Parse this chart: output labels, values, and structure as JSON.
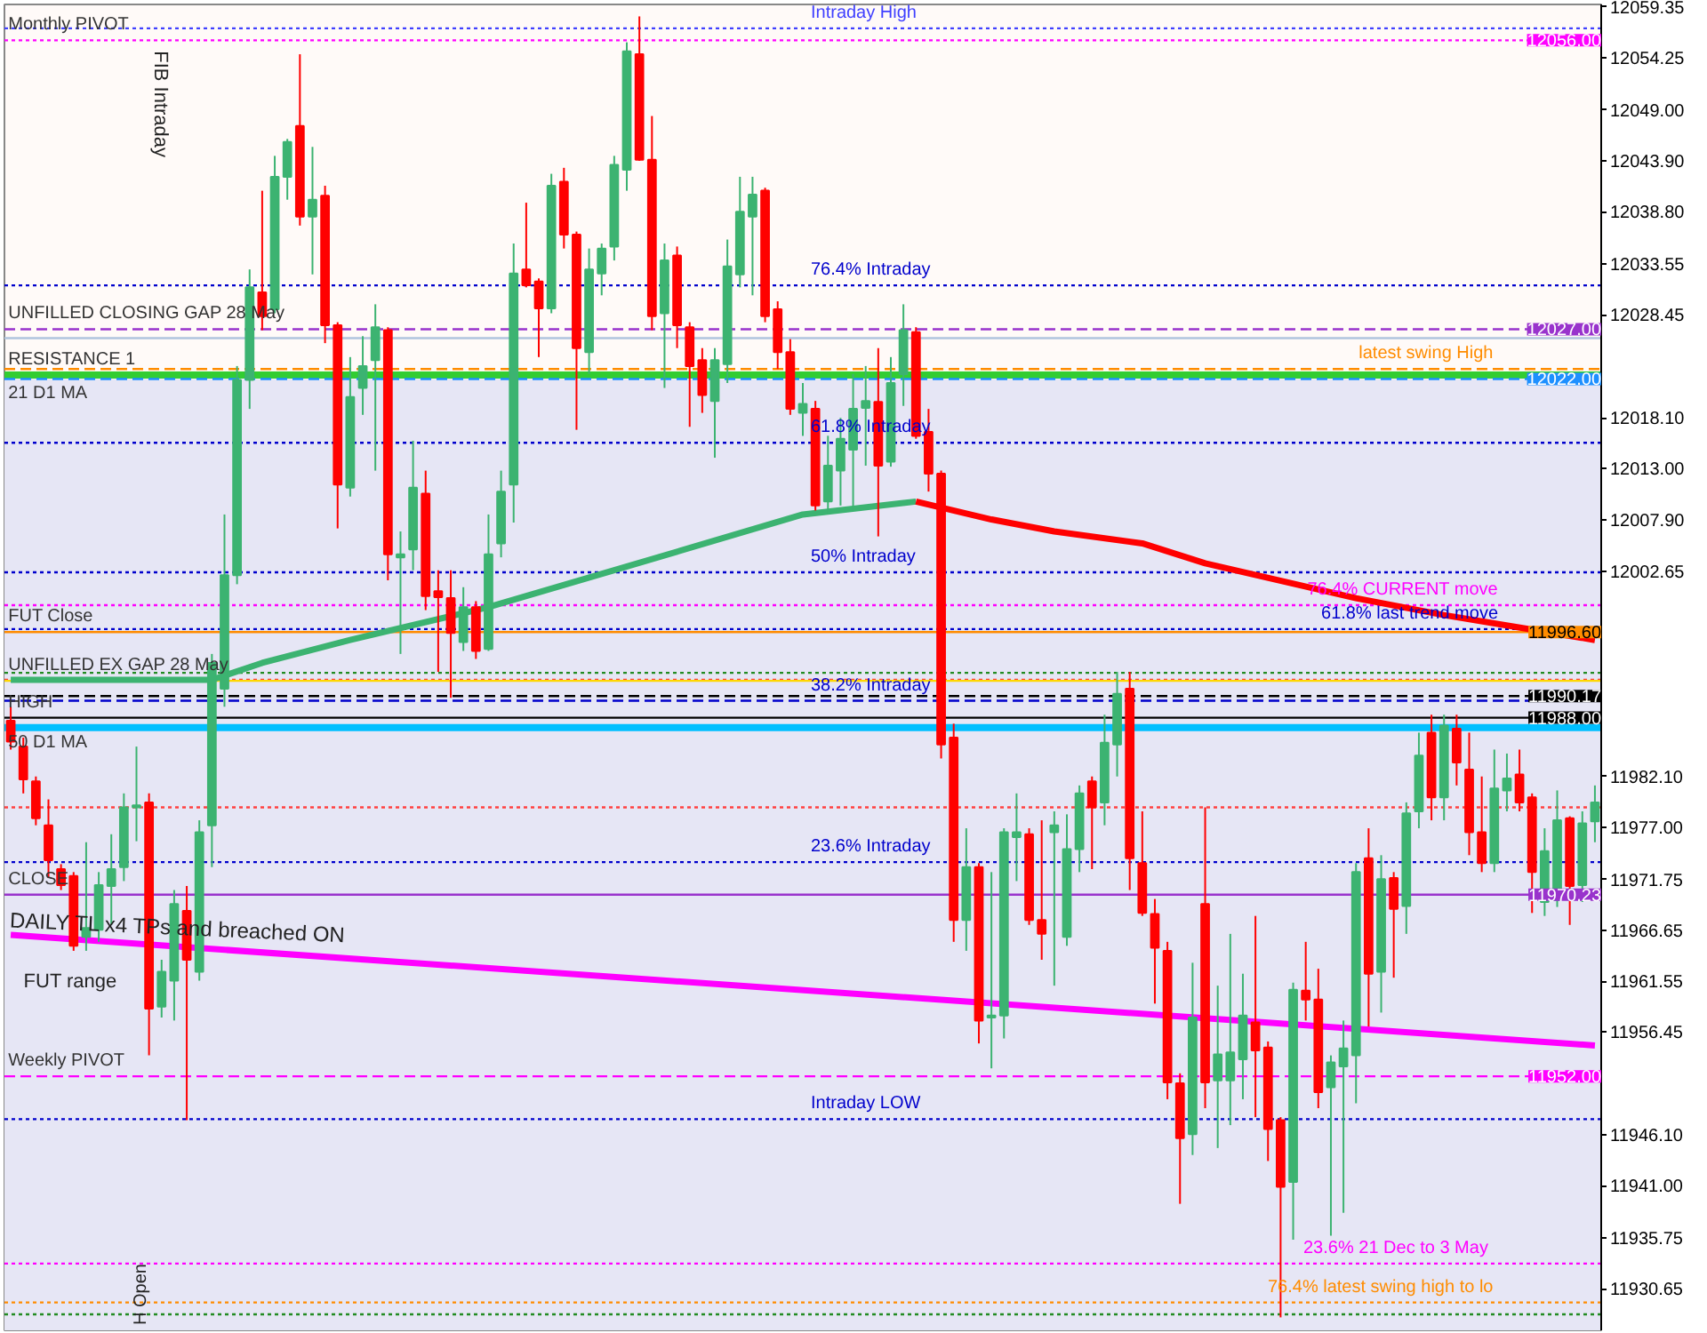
{
  "chart_data": {
    "type": "candlestick",
    "categories": [
      null,
      null,
      null,
      null,
      null,
      null,
      null,
      null,
      null,
      null,
      null,
      null,
      null,
      null,
      null,
      null,
      null,
      null,
      null,
      null,
      null,
      null,
      null,
      null,
      null,
      null,
      null,
      null,
      null,
      null,
      null,
      null,
      null,
      null,
      null,
      null,
      null,
      null,
      null,
      null,
      null,
      null,
      null,
      null,
      null,
      null,
      null,
      null,
      null,
      null,
      null,
      null,
      null,
      null,
      null,
      null,
      null,
      null,
      null,
      null,
      null,
      null,
      null,
      null,
      null,
      null,
      null,
      null,
      null,
      null,
      null,
      null,
      null,
      null,
      null,
      null,
      null,
      null,
      null,
      null,
      null,
      null,
      null,
      null,
      null,
      null,
      null,
      null,
      null,
      null,
      null,
      null,
      null,
      null,
      null,
      null,
      null,
      null,
      null,
      null,
      null,
      null,
      null,
      null,
      null,
      null,
      null,
      null,
      null,
      null,
      null,
      null,
      null,
      null,
      null,
      null,
      null,
      null,
      null,
      null,
      null,
      null,
      null,
      null,
      null,
      null,
      null
    ],
    "ohlc": [
      [
        11987.7,
        11989.1,
        11984.8,
        11985.6
      ],
      [
        11985.1,
        11986.0,
        11980.4,
        11981.8
      ],
      [
        11981.6,
        11982.1,
        11977.2,
        11977.9
      ],
      [
        11977.2,
        11979.8,
        11971.9,
        11973.7
      ],
      [
        11972.8,
        11973.3,
        11970.7,
        11971.2
      ],
      [
        11972.1,
        11972.5,
        11964.6,
        11965.1
      ],
      [
        11966.0,
        11975.5,
        11964.6,
        11966.9
      ],
      [
        11966.7,
        11972.5,
        11965.5,
        11971.2
      ],
      [
        11971.1,
        11976.3,
        11967.2,
        11972.8
      ],
      [
        11973.0,
        11980.4,
        11971.6,
        11979.0
      ],
      [
        11979.0,
        11985.1,
        11975.6,
        11979.2
      ],
      [
        11979.5,
        11980.4,
        11954.1,
        11958.8
      ],
      [
        11959.0,
        11963.7,
        11957.9,
        11962.5
      ],
      [
        11961.6,
        11970.7,
        11957.6,
        11969.3
      ],
      [
        11968.6,
        11971.1,
        11947.6,
        11963.7
      ],
      [
        11962.5,
        11977.7,
        11961.6,
        11976.5
      ],
      [
        11977.2,
        11994.4,
        11973.0,
        11993.5
      ],
      [
        11990.9,
        12008.4,
        11989.1,
        12002.3
      ],
      [
        12002.3,
        12023.3,
        12001.4,
        12021.9
      ],
      [
        12021.9,
        12033.0,
        12019.0,
        12031.2
      ],
      [
        12030.7,
        12040.9,
        12026.9,
        12028.3
      ],
      [
        12029.0,
        12044.4,
        12028.6,
        12042.3
      ],
      [
        12042.3,
        12046.1,
        12040.0,
        12045.8
      ],
      [
        12047.4,
        12054.6,
        12037.4,
        12038.3
      ],
      [
        12038.3,
        12045.3,
        12032.5,
        12040.0
      ],
      [
        12040.4,
        12041.4,
        12025.6,
        12027.4
      ],
      [
        12027.4,
        12027.7,
        12007.0,
        12011.4
      ],
      [
        12011.1,
        12024.2,
        12010.2,
        12020.2
      ],
      [
        12021.1,
        12026.3,
        12018.4,
        12023.3
      ],
      [
        12023.9,
        12029.5,
        12012.8,
        12027.2
      ],
      [
        12026.9,
        12027.2,
        12001.8,
        12004.4
      ],
      [
        12004.1,
        12006.7,
        11994.4,
        12004.4
      ],
      [
        12004.9,
        12015.8,
        12002.8,
        12011.1
      ],
      [
        12010.5,
        12012.8,
        11998.8,
        12000.2
      ],
      [
        12000.7,
        12002.8,
        11992.6,
        12000.1
      ],
      [
        12000.0,
        12002.8,
        11990.0,
        11996.5
      ],
      [
        11995.6,
        12001.1,
        11994.7,
        11999.1
      ],
      [
        11999.1,
        11999.7,
        11993.9,
        11994.7
      ],
      [
        11994.9,
        12008.4,
        11994.7,
        12004.4
      ],
      [
        12005.5,
        12012.8,
        12004.1,
        12010.7
      ],
      [
        12011.4,
        12035.6,
        12007.6,
        12032.6
      ],
      [
        12033.0,
        12039.7,
        12031.2,
        12031.4
      ],
      [
        12031.8,
        12032.1,
        12024.2,
        12029.1
      ],
      [
        12029.1,
        12042.6,
        12028.6,
        12041.4
      ],
      [
        12041.8,
        12043.2,
        12035.1,
        12036.5
      ],
      [
        12036.5,
        12036.8,
        12016.9,
        12025.1
      ],
      [
        12024.7,
        12035.1,
        12022.5,
        12033.0
      ],
      [
        12032.6,
        12035.6,
        12030.4,
        12035.1
      ],
      [
        12035.3,
        12044.4,
        12033.9,
        12043.5
      ],
      [
        12043.0,
        12055.8,
        12040.9,
        12054.9
      ],
      [
        12054.6,
        12058.4,
        12043.9,
        12044.0
      ],
      [
        12044.0,
        12048.4,
        12026.9,
        12028.3
      ],
      [
        12028.6,
        12035.6,
        12021.1,
        12033.9
      ],
      [
        12034.4,
        12035.3,
        12025.1,
        12027.4
      ],
      [
        12027.2,
        12027.7,
        12017.2,
        12023.3
      ],
      [
        12023.9,
        12025.1,
        12018.6,
        12020.4
      ],
      [
        12019.8,
        12025.1,
        12014.1,
        12023.9
      ],
      [
        12023.5,
        12036.0,
        12021.6,
        12033.3
      ],
      [
        12032.5,
        12042.3,
        12031.2,
        12038.8
      ],
      [
        12038.3,
        12042.3,
        12030.4,
        12040.5
      ],
      [
        12040.9,
        12041.2,
        12027.7,
        12028.3
      ],
      [
        12029.0,
        12029.8,
        12023.0,
        12024.7
      ],
      [
        12024.7,
        12026.0,
        12018.4,
        12019.0
      ],
      [
        12018.6,
        12021.6,
        12016.3,
        12019.5
      ],
      [
        12019.0,
        12019.8,
        12008.8,
        12009.3
      ],
      [
        12009.7,
        12016.3,
        12008.4,
        12013.3
      ],
      [
        12012.8,
        12018.1,
        12009.3,
        12016.0
      ],
      [
        12014.9,
        12022.5,
        12008.8,
        12019.0
      ],
      [
        12019.1,
        12023.3,
        12013.3,
        12019.8
      ],
      [
        12019.7,
        12025.1,
        12006.2,
        12013.3
      ],
      [
        12013.7,
        12024.2,
        12013.2,
        12021.6
      ],
      [
        12022.5,
        12029.5,
        12019.3,
        12026.9
      ],
      [
        12026.7,
        12027.2,
        12016.0,
        12016.3
      ],
      [
        12016.7,
        12019.0,
        12010.7,
        12012.5
      ],
      [
        12012.5,
        12012.8,
        11983.9,
        11985.3
      ],
      [
        11986.0,
        11987.4,
        11965.5,
        11967.7
      ],
      [
        11967.7,
        11976.9,
        11964.6,
        11973.0
      ],
      [
        11973.0,
        11973.4,
        11955.3,
        11957.6
      ],
      [
        11957.9,
        11972.5,
        11952.8,
        11958.1
      ],
      [
        11958.1,
        11976.9,
        11955.8,
        11976.5
      ],
      [
        11976.0,
        11980.4,
        11971.6,
        11976.5
      ],
      [
        11976.3,
        11976.9,
        11967.2,
        11967.7
      ],
      [
        11967.7,
        11977.7,
        11963.7,
        11966.3
      ],
      [
        11976.5,
        11978.6,
        11961.1,
        11977.2
      ],
      [
        11966.0,
        11978.3,
        11965.1,
        11974.8
      ],
      [
        11974.8,
        11981.2,
        11972.5,
        11980.4
      ],
      [
        11981.6,
        11982.1,
        11972.8,
        11979.0
      ],
      [
        11979.5,
        11988.3,
        11977.2,
        11985.5
      ],
      [
        11985.3,
        11992.6,
        11982.1,
        11990.4
      ],
      [
        11990.9,
        11992.6,
        11970.7,
        11973.9
      ],
      [
        11973.4,
        11978.6,
        11968.1,
        11968.4
      ],
      [
        11968.3,
        11969.8,
        11959.3,
        11964.9
      ],
      [
        11964.6,
        11965.5,
        11949.7,
        11951.4
      ],
      [
        11951.3,
        11952.3,
        11939.2,
        11945.8
      ],
      [
        11946.2,
        11963.4,
        11944.1,
        11957.9
      ],
      [
        11969.3,
        11979.0,
        11948.8,
        11951.4
      ],
      [
        11951.6,
        11961.1,
        11944.8,
        11954.2
      ],
      [
        11951.6,
        11966.3,
        11947.1,
        11954.4
      ],
      [
        11953.7,
        11962.3,
        11949.7,
        11958.1
      ],
      [
        11957.4,
        11968.1,
        11947.9,
        11954.6
      ],
      [
        11954.9,
        11955.5,
        11943.5,
        11946.7
      ],
      [
        11947.6,
        11947.9,
        11927.8,
        11940.9
      ],
      [
        11941.4,
        11961.4,
        11935.6,
        11960.7
      ],
      [
        11960.6,
        11965.5,
        11957.6,
        11959.7
      ],
      [
        11959.7,
        11962.8,
        11948.8,
        11950.4
      ],
      [
        11950.9,
        11954.1,
        11936.0,
        11953.4
      ],
      [
        11953.0,
        11957.6,
        11938.3,
        11954.8
      ],
      [
        11954.1,
        11973.4,
        11949.3,
        11972.5
      ],
      [
        11973.9,
        11976.9,
        11957.0,
        11962.3
      ],
      [
        11962.5,
        11974.2,
        11958.4,
        11971.8
      ],
      [
        11971.9,
        11972.5,
        11961.9,
        11968.8
      ],
      [
        11969.1,
        11979.5,
        11966.3,
        11978.4
      ],
      [
        11978.6,
        11986.5,
        11976.9,
        11984.2
      ],
      [
        11986.5,
        11988.3,
        11977.7,
        11980.0
      ],
      [
        11980.0,
        11988.3,
        11977.7,
        11987.2
      ],
      [
        11986.9,
        11988.3,
        11981.2,
        11983.5
      ],
      [
        11982.8,
        11986.5,
        11974.2,
        11976.5
      ],
      [
        11976.5,
        11982.1,
        11972.5,
        11973.4
      ],
      [
        11973.4,
        11984.8,
        11972.5,
        11980.9
      ],
      [
        11980.7,
        11984.4,
        11978.6,
        11981.9
      ],
      [
        11982.3,
        11984.8,
        11978.6,
        11979.5
      ],
      [
        11980.0,
        11980.4,
        11968.4,
        11972.5
      ],
      [
        11969.5,
        11976.9,
        11968.1,
        11974.6
      ],
      [
        11969.7,
        11980.7,
        11969.0,
        11977.7
      ],
      [
        11977.9,
        11978.1,
        11967.2,
        11971.1
      ],
      [
        11971.2,
        11978.6,
        11969.5,
        11977.4
      ],
      [
        11977.6,
        11981.2,
        11975.5,
        11979.5
      ]
    ],
    "ylim": [
      11926.5,
      12059.6
    ],
    "yticks": [
      {
        "value": 12059.35,
        "label": "12059.35"
      },
      {
        "value": 12054.25,
        "label": "12054.25"
      },
      {
        "value": 12049.0,
        "label": "12049.00"
      },
      {
        "value": 12043.9,
        "label": "12043.90"
      },
      {
        "value": 12038.8,
        "label": "12038.80"
      },
      {
        "value": 12033.55,
        "label": "12033.55"
      },
      {
        "value": 12028.45,
        "label": "12028.45"
      },
      {
        "value": 12018.1,
        "label": "12018.10"
      },
      {
        "value": 12013.0,
        "label": "12013.00"
      },
      {
        "value": 12007.9,
        "label": "12007.90"
      },
      {
        "value": 12002.65,
        "label": "12002.65"
      },
      {
        "value": 11982.1,
        "label": "11982.10"
      },
      {
        "value": 11977.0,
        "label": "11977.00"
      },
      {
        "value": 11971.75,
        "label": "11971.75"
      },
      {
        "value": 11966.65,
        "label": "11966.65"
      },
      {
        "value": 11961.55,
        "label": "11961.55"
      },
      {
        "value": 11956.45,
        "label": "11956.45"
      },
      {
        "value": 11946.1,
        "label": "11946.10"
      },
      {
        "value": 11941.0,
        "label": "11941.00"
      },
      {
        "value": 11935.75,
        "label": "11935.75"
      },
      {
        "value": 11930.65,
        "label": "11930.65"
      }
    ],
    "tick_labels": "y",
    "series": [
      {
        "type": "line",
        "color": "#3cb371",
        "values": [
          11991.8,
          null,
          null,
          null,
          null,
          null,
          null,
          null,
          null,
          null,
          null,
          null,
          null,
          null,
          null,
          null,
          11991.8,
          null,
          null,
          null,
          11993.5,
          null,
          null,
          null,
          null,
          null,
          null,
          11995.8,
          null,
          null,
          null,
          null,
          null,
          null,
          null,
          null,
          null,
          null,
          11999.1,
          null,
          null,
          null,
          null,
          null,
          null,
          null,
          null,
          null,
          12002.8,
          null,
          null,
          null,
          null,
          null,
          null,
          null,
          null,
          null,
          null,
          null,
          null,
          null,
          null,
          12008.4,
          null,
          null,
          null,
          null,
          null,
          null,
          null,
          null,
          12009.7,
          null,
          null,
          null,
          null,
          null,
          null,
          null,
          null,
          null,
          null,
          null,
          null,
          null,
          null,
          null,
          null,
          null,
          null,
          null,
          null,
          null,
          null,
          null,
          null,
          null,
          null,
          null,
          null,
          null,
          null,
          null,
          null,
          null,
          null,
          null,
          null,
          null,
          null,
          null,
          null,
          null,
          null,
          null,
          null,
          null,
          null,
          null,
          null,
          null,
          null,
          null,
          null,
          null,
          null
        ]
      },
      {
        "type": "line",
        "color": "#ff0000",
        "values": [
          null,
          null,
          null,
          null,
          null,
          null,
          null,
          null,
          null,
          null,
          null,
          null,
          null,
          null,
          null,
          null,
          null,
          null,
          null,
          null,
          null,
          null,
          null,
          null,
          null,
          null,
          null,
          null,
          null,
          null,
          null,
          null,
          null,
          null,
          null,
          null,
          null,
          null,
          null,
          null,
          null,
          null,
          null,
          null,
          null,
          null,
          null,
          null,
          null,
          null,
          null,
          null,
          null,
          null,
          null,
          null,
          null,
          null,
          null,
          null,
          null,
          null,
          null,
          null,
          null,
          null,
          null,
          null,
          null,
          null,
          null,
          null,
          12009.7,
          null,
          null,
          null,
          null,
          null,
          12007.9,
          null,
          null,
          null,
          null,
          12006.7,
          null,
          null,
          null,
          null,
          null,
          null,
          12005.5,
          null,
          null,
          null,
          null,
          12003.5,
          null,
          null,
          null,
          null,
          null,
          null,
          null,
          null,
          null,
          null,
          null,
          12000.0,
          null,
          null,
          null,
          null,
          null,
          null,
          11998.3,
          null,
          null,
          null,
          null,
          null,
          null,
          null,
          null,
          null,
          null,
          null,
          11995.8
        ]
      },
      {
        "type": "line",
        "color": "#ff00ff",
        "values": [
          11966.2,
          null,
          null,
          null,
          null,
          null,
          null,
          null,
          null,
          null,
          null,
          null,
          null,
          null,
          null,
          null,
          null,
          null,
          null,
          null,
          null,
          null,
          null,
          null,
          null,
          null,
          null,
          null,
          null,
          null,
          null,
          null,
          null,
          null,
          null,
          null,
          null,
          null,
          null,
          null,
          null,
          null,
          null,
          null,
          null,
          null,
          null,
          null,
          null,
          null,
          null,
          null,
          null,
          null,
          null,
          null,
          null,
          null,
          null,
          null,
          null,
          null,
          null,
          null,
          null,
          null,
          null,
          null,
          null,
          null,
          null,
          null,
          null,
          null,
          null,
          null,
          null,
          null,
          null,
          null,
          null,
          null,
          null,
          null,
          null,
          null,
          null,
          null,
          null,
          null,
          null,
          null,
          null,
          null,
          null,
          null,
          null,
          null,
          null,
          null,
          null,
          null,
          null,
          null,
          null,
          null,
          null,
          null,
          null,
          null,
          null,
          null,
          null,
          null,
          null,
          null,
          null,
          null,
          null,
          null,
          null,
          null,
          null,
          null,
          null,
          null,
          11955.1
        ]
      }
    ],
    "bands": [
      {
        "axis": "y",
        "from": 11926.5,
        "to": 12022.0,
        "color": "#e6e6f5"
      }
    ],
    "ref_lines": [
      {
        "axis": "y",
        "value": 12057.2,
        "label": "Intraday High",
        "color": "#4040ff",
        "line_style": "dotted"
      },
      {
        "axis": "y",
        "value": 12056.0,
        "label": "Monthly PIVOT",
        "color": "#ff00ff",
        "line_style": "dotted"
      },
      {
        "axis": "y",
        "value": 12031.4,
        "label": "76.4%  Intraday",
        "color": "#0000cc",
        "line_style": "dotted"
      },
      {
        "axis": "y",
        "value": 12027.0,
        "label": "UNFILLED CLOSING GAP 28 May",
        "color": "#9933cc",
        "line_style": "dashed"
      },
      {
        "axis": "y",
        "value": 12026.1,
        "color": "#b0c4de",
        "line_style": "solid"
      },
      {
        "axis": "y",
        "value": 12023.0,
        "label": "latest swing  High",
        "color": "#ff8c00",
        "line_style": "dashed"
      },
      {
        "axis": "y",
        "value": 12022.4,
        "label": "RESISTANCE 1",
        "color": "#32cd32",
        "line_style": "solid"
      },
      {
        "axis": "y",
        "value": 12022.0,
        "label": "21 D1 MA",
        "color": "#1e90ff",
        "line_style": "dashed"
      },
      {
        "axis": "y",
        "value": 12015.6,
        "label": "61.8%  Intraday",
        "color": "#0000cc",
        "line_style": "dotted"
      },
      {
        "axis": "y",
        "value": 12002.6,
        "label": "50%   Intraday",
        "color": "#0000cc",
        "line_style": "dotted"
      },
      {
        "axis": "y",
        "value": 11999.3,
        "label": "76.4% CURRENT move",
        "color": "#ff00ff",
        "line_style": "dotted"
      },
      {
        "axis": "y",
        "value": 11996.6,
        "label": "FUT Close",
        "color": "#ff8c00",
        "line_style": "solid"
      },
      {
        "axis": "y",
        "value": 11996.9,
        "label": "61.8% last trend move",
        "color": "#0000cc",
        "line_style": "dotted"
      },
      {
        "axis": "y",
        "value": 11992.5,
        "color": "#228b22",
        "line_style": "dotted"
      },
      {
        "axis": "y",
        "value": 11991.8,
        "color": "#ff4040",
        "line_style": "dotted"
      },
      {
        "axis": "y",
        "value": 11991.7,
        "label": "UNFILLED EX GAP 28 May",
        "color": "#ffd700",
        "line_style": "solid"
      },
      {
        "axis": "y",
        "value": 11989.7,
        "label": "38.2%  Intraday",
        "color": "#0000cc",
        "line_style": "dashed"
      },
      {
        "axis": "y",
        "value": 11990.17,
        "color": "#000000",
        "line_style": "dashed"
      },
      {
        "axis": "y",
        "value": 11988.0,
        "label": "HIGH",
        "color": "#000000",
        "line_style": "solid"
      },
      {
        "axis": "y",
        "value": 11987.0,
        "label": "50 D1 MA",
        "color": "#00bfff",
        "line_style": "solid"
      },
      {
        "axis": "y",
        "value": 11979.0,
        "color": "#ff4040",
        "line_style": "dotted"
      },
      {
        "axis": "y",
        "value": 11973.5,
        "label": "23.6%  Intraday",
        "color": "#0000cc",
        "line_style": "dotted"
      },
      {
        "axis": "y",
        "value": 11970.23,
        "label": "CLOSE",
        "color": "#9933cc",
        "line_style": "solid"
      },
      {
        "axis": "y",
        "value": 11952.0,
        "label": "Weekly PIVOT",
        "color": "#ff00ff",
        "line_style": "dashed"
      },
      {
        "axis": "y",
        "value": 11947.7,
        "label": "Intraday LOW",
        "color": "#0000cc",
        "line_style": "dotted"
      },
      {
        "axis": "y",
        "value": 11933.2,
        "label": "23.6%   21 Dec to 3 May",
        "color": "#ff00ff",
        "line_style": "dotted"
      },
      {
        "axis": "y",
        "value": 11929.3,
        "label": "76.4%  latest swing high to lo",
        "color": "#ff8c00",
        "line_style": "dotted"
      },
      {
        "axis": "y",
        "value": 11928.1,
        "color": "#228b22",
        "line_style": "dotted"
      }
    ],
    "annotations": [
      "FIB Intraday",
      "DAILY TL x4 TPs and breached ON",
      "FUT range",
      "H Open",
      {
        "text": "12056.00",
        "y": 12056.0
      },
      {
        "text": "12027.00",
        "y": 12027.0
      },
      {
        "text": "12022.00",
        "y": 12022.0
      },
      {
        "text": "11996.60",
        "y": 11996.6
      },
      {
        "text": "11990.17",
        "y": 11990.17
      },
      {
        "text": "11988.00",
        "y": 11988.0
      },
      {
        "text": "11970.23",
        "y": 11970.23
      },
      {
        "text": "11952.00",
        "y": 11952.0
      }
    ]
  }
}
